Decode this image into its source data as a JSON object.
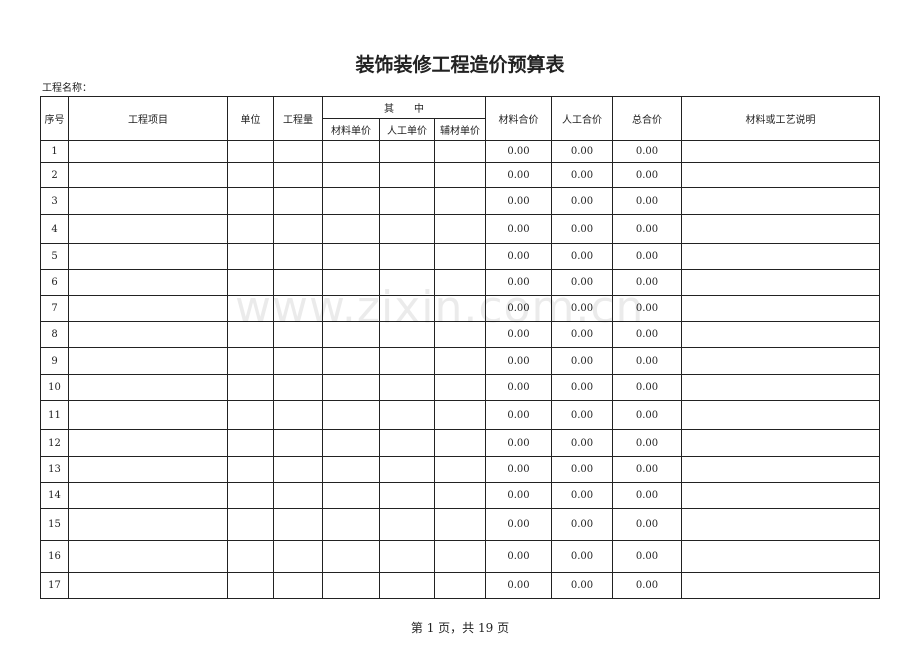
{
  "title": "装饰装修工程造价预算表",
  "project_label": "工程名称：",
  "headers": {
    "seq": "序号",
    "item": "工程项目",
    "unit": "单位",
    "qty": "工程量",
    "group": "其　　中",
    "mat_price": "材料单价",
    "labor_price": "人工单价",
    "aux_price": "辅材单价",
    "mat_total": "材料合价",
    "labor_total": "人工合价",
    "total": "总合价",
    "desc": "材料或工艺说明"
  },
  "rows": [
    {
      "seq": "1",
      "mat_total": "0.00",
      "labor_total": "0.00",
      "total": "0.00"
    },
    {
      "seq": "2",
      "mat_total": "0.00",
      "labor_total": "0.00",
      "total": "0.00"
    },
    {
      "seq": "3",
      "mat_total": "0.00",
      "labor_total": "0.00",
      "total": "0.00"
    },
    {
      "seq": "4",
      "mat_total": "0.00",
      "labor_total": "0.00",
      "total": "0.00"
    },
    {
      "seq": "5",
      "mat_total": "0.00",
      "labor_total": "0.00",
      "total": "0.00"
    },
    {
      "seq": "6",
      "mat_total": "0.00",
      "labor_total": "0.00",
      "total": "0.00"
    },
    {
      "seq": "7",
      "mat_total": "0.00",
      "labor_total": "0.00",
      "total": "0.00"
    },
    {
      "seq": "8",
      "mat_total": "0.00",
      "labor_total": "0.00",
      "total": "0.00"
    },
    {
      "seq": "9",
      "mat_total": "0.00",
      "labor_total": "0.00",
      "total": "0.00"
    },
    {
      "seq": "10",
      "mat_total": "0.00",
      "labor_total": "0.00",
      "total": "0.00"
    },
    {
      "seq": "11",
      "mat_total": "0.00",
      "labor_total": "0.00",
      "total": "0.00"
    },
    {
      "seq": "12",
      "mat_total": "0.00",
      "labor_total": "0.00",
      "total": "0.00"
    },
    {
      "seq": "13",
      "mat_total": "0.00",
      "labor_total": "0.00",
      "total": "0.00"
    },
    {
      "seq": "14",
      "mat_total": "0.00",
      "labor_total": "0.00",
      "total": "0.00"
    },
    {
      "seq": "15",
      "mat_total": "0.00",
      "labor_total": "0.00",
      "total": "0.00"
    },
    {
      "seq": "16",
      "mat_total": "0.00",
      "labor_total": "0.00",
      "total": "0.00"
    },
    {
      "seq": "17",
      "mat_total": "0.00",
      "labor_total": "0.00",
      "total": "0.00"
    }
  ],
  "footer": "第 1 页，共 19 页",
  "watermark": "www.zixin.com.cn"
}
